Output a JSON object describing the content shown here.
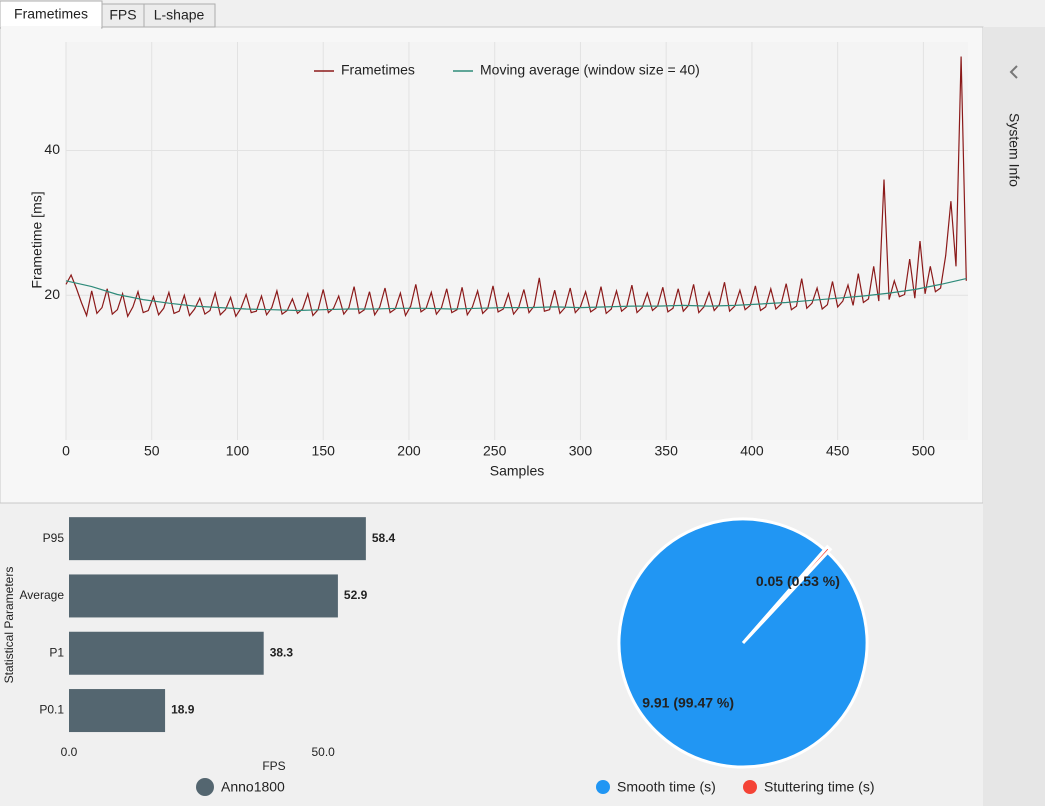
{
  "tabs": [
    "Frametimes",
    "FPS",
    "L-shape"
  ],
  "sidebar": {
    "title": "System Info"
  },
  "chart_data": [
    {
      "type": "line",
      "xlabel": "Samples",
      "ylabel": "Frametime [ms]",
      "xlim": [
        0,
        526
      ],
      "ylim": [
        0,
        55
      ],
      "xticks": [
        0,
        50,
        100,
        150,
        200,
        250,
        300,
        350,
        400,
        450,
        500
      ],
      "yticks": [
        20,
        40
      ],
      "grid": true,
      "legend": "top",
      "series": [
        {
          "name": "Frametimes",
          "color": "#8b1a1a",
          "x": [
            0,
            3,
            6,
            9,
            12,
            15,
            18,
            21,
            24,
            27,
            30,
            33,
            36,
            39,
            42,
            45,
            48,
            51,
            54,
            57,
            60,
            63,
            66,
            69,
            72,
            75,
            78,
            81,
            84,
            87,
            90,
            93,
            96,
            99,
            102,
            105,
            108,
            111,
            114,
            117,
            120,
            123,
            126,
            129,
            132,
            135,
            138,
            141,
            144,
            147,
            150,
            153,
            156,
            159,
            162,
            165,
            168,
            171,
            174,
            177,
            180,
            183,
            186,
            189,
            192,
            195,
            198,
            201,
            204,
            207,
            210,
            213,
            216,
            219,
            222,
            225,
            228,
            231,
            234,
            237,
            240,
            243,
            246,
            249,
            252,
            255,
            258,
            261,
            264,
            267,
            270,
            273,
            276,
            279,
            282,
            285,
            288,
            291,
            294,
            297,
            300,
            303,
            306,
            309,
            312,
            315,
            318,
            321,
            324,
            327,
            330,
            333,
            336,
            339,
            342,
            345,
            348,
            351,
            354,
            357,
            360,
            363,
            366,
            369,
            372,
            375,
            378,
            381,
            384,
            387,
            390,
            393,
            396,
            399,
            402,
            405,
            408,
            411,
            414,
            417,
            420,
            423,
            426,
            429,
            432,
            435,
            438,
            441,
            444,
            447,
            450,
            453,
            456,
            459,
            462,
            465,
            468,
            471,
            474,
            477,
            480,
            483,
            486,
            489,
            492,
            495,
            498,
            501,
            504,
            507,
            510,
            513,
            516,
            519,
            522,
            525
          ],
          "values": [
            21.5,
            22.8,
            21.0,
            19.0,
            17.2,
            20.6,
            17.5,
            18.3,
            20.9,
            17.4,
            18.0,
            20.2,
            17.1,
            18.4,
            20.5,
            17.6,
            17.9,
            19.8,
            17.3,
            18.2,
            20.4,
            17.5,
            17.8,
            20.0,
            17.2,
            18.1,
            19.6,
            17.4,
            17.9,
            20.3,
            17.3,
            18.0,
            19.7,
            17.1,
            18.2,
            20.1,
            17.6,
            17.8,
            19.9,
            17.3,
            18.3,
            20.6,
            17.4,
            17.9,
            19.5,
            17.5,
            18.1,
            20.2,
            17.2,
            18.0,
            20.8,
            17.6,
            18.2,
            19.9,
            17.4,
            18.3,
            21.2,
            17.5,
            18.0,
            20.5,
            17.3,
            18.4,
            21.0,
            17.6,
            18.1,
            20.3,
            17.2,
            18.5,
            21.5,
            17.7,
            18.2,
            20.4,
            17.4,
            18.3,
            20.9,
            17.6,
            18.0,
            21.1,
            17.3,
            18.4,
            20.6,
            17.5,
            18.2,
            21.3,
            17.7,
            18.1,
            20.2,
            17.4,
            18.3,
            20.8,
            17.6,
            18.5,
            22.4,
            17.8,
            18.0,
            20.7,
            17.5,
            18.3,
            21.0,
            17.6,
            18.4,
            20.5,
            17.7,
            18.2,
            21.2,
            17.5,
            18.1,
            20.6,
            17.8,
            18.4,
            21.4,
            17.6,
            18.3,
            20.3,
            17.9,
            18.5,
            21.1,
            17.7,
            18.2,
            20.9,
            17.8,
            18.6,
            21.5,
            17.6,
            18.4,
            20.4,
            17.9,
            18.7,
            21.8,
            17.8,
            18.5,
            20.7,
            18.0,
            18.6,
            21.3,
            17.9,
            18.4,
            20.9,
            18.1,
            18.8,
            21.6,
            18.0,
            18.5,
            22.3,
            18.2,
            18.9,
            21.0,
            18.1,
            18.7,
            21.9,
            18.4,
            19.2,
            21.4,
            18.6,
            23.0,
            19.0,
            19.5,
            24.0,
            19.2,
            36.0,
            19.4,
            22.0,
            19.8,
            20.1,
            25.0,
            19.6,
            27.5,
            20.2,
            24.0,
            20.5,
            21.0,
            25.5,
            33.0,
            24.0,
            53.0,
            22.0
          ]
        },
        {
          "name": "Moving average (window size = 40)",
          "color": "#2e8b7a",
          "x": [
            0,
            15,
            30,
            45,
            60,
            75,
            90,
            105,
            120,
            135,
            150,
            165,
            180,
            195,
            210,
            225,
            240,
            255,
            270,
            285,
            300,
            315,
            330,
            345,
            360,
            375,
            390,
            405,
            420,
            435,
            450,
            465,
            480,
            495,
            510,
            525
          ],
          "values": [
            22.0,
            21.2,
            20.1,
            19.4,
            18.9,
            18.5,
            18.3,
            18.1,
            18.0,
            17.9,
            18.0,
            18.1,
            18.1,
            18.2,
            18.2,
            18.1,
            18.2,
            18.3,
            18.3,
            18.4,
            18.3,
            18.4,
            18.5,
            18.5,
            18.6,
            18.5,
            18.6,
            18.8,
            19.0,
            19.3,
            19.6,
            19.9,
            20.3,
            20.8,
            21.5,
            22.3
          ]
        }
      ]
    },
    {
      "type": "bar",
      "orientation": "horizontal",
      "xlabel": "FPS",
      "ylabel": "Statistical Parameters",
      "categories": [
        "P95",
        "Average",
        "P1",
        "P0.1"
      ],
      "xlim": [
        0,
        60
      ],
      "xticks": [
        {
          "value": 0,
          "label": "0.0"
        },
        {
          "value": 50,
          "label": "50.0"
        }
      ],
      "series": [
        {
          "name": "Anno1800",
          "color": "#546670",
          "values": [
            58.4,
            52.9,
            38.3,
            18.9
          ]
        }
      ]
    },
    {
      "type": "pie",
      "categories": [
        "Smooth time (s)",
        "Stuttering time (s)"
      ],
      "values": [
        9.91,
        0.05
      ],
      "value_labels": [
        "9.91 (99.47 %)",
        "0.05 (0.53 %)"
      ],
      "colors": [
        "#2196f3",
        "#f44336"
      ]
    }
  ]
}
